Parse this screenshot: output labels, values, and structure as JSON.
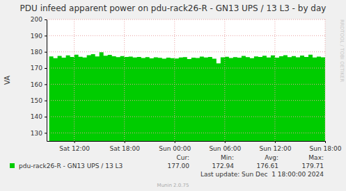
{
  "chart_data": {
    "type": "area",
    "title": "PDU infeed apparent power on pdu-rack26-R - GN13 UPS / 13 L3 - by day",
    "y_label": "VA",
    "x": [
      9,
      9.5,
      10,
      10.5,
      11,
      11.5,
      12,
      12.5,
      13,
      13.5,
      14,
      14.5,
      15,
      15.5,
      16,
      16.5,
      17,
      17.5,
      18,
      18.5,
      19,
      19.5,
      20,
      20.5,
      21,
      21.5,
      22,
      22.5,
      23,
      23.5,
      24,
      24.5,
      25,
      25.5,
      26,
      26.5,
      27,
      27.5,
      28,
      28.5,
      29,
      29.5,
      30,
      30.5,
      31,
      31.5,
      32,
      32.5,
      33,
      33.5,
      34,
      34.5,
      35,
      35.5,
      36,
      36.5,
      37,
      37.5,
      38,
      38.5,
      39,
      39.5,
      40,
      40.5,
      41,
      41.5,
      42
    ],
    "series": [
      {
        "name": "pdu-rack26-R - GN13 UPS / 13 L3",
        "color": "#00cc00",
        "values": [
          177.2,
          176.1,
          177.5,
          176.4,
          177.8,
          176.9,
          178.3,
          177.0,
          176.5,
          177.9,
          178.6,
          177.2,
          179.7,
          177.6,
          178.1,
          177.3,
          176.8,
          177.4,
          176.9,
          177.1,
          176.5,
          176.9,
          176.2,
          176.7,
          176.0,
          176.6,
          176.3,
          175.8,
          176.4,
          176.1,
          175.9,
          176.5,
          176.8,
          175.6,
          176.4,
          176.2,
          177.1,
          176.5,
          176.9,
          175.8,
          172.9,
          176.6,
          177.0,
          176.2,
          176.8,
          176.4,
          177.5,
          176.7,
          176.1,
          177.2,
          176.9,
          177.6,
          176.5,
          177.8,
          176.4,
          177.3,
          177.9,
          176.8,
          177.4,
          176.6,
          177.7,
          176.9,
          178.2,
          176.5,
          177.1,
          176.6,
          177.0
        ]
      }
    ],
    "xlim": [
      8.7,
      42
    ],
    "xticks": [
      {
        "value": 12,
        "label": "Sat 12:00"
      },
      {
        "value": 18,
        "label": "Sat 18:00"
      },
      {
        "value": 24,
        "label": "Sun 00:00"
      },
      {
        "value": 30,
        "label": "Sun 06:00"
      },
      {
        "value": 36,
        "label": "Sun 12:00"
      },
      {
        "value": 42,
        "label": "Sun 18:00"
      }
    ],
    "ylim": [
      125,
      200
    ],
    "yticks": [
      130,
      140,
      150,
      160,
      170,
      180,
      190,
      200
    ],
    "grid": true,
    "stats": [
      {
        "name": "Cur:",
        "value": "177.00"
      },
      {
        "name": "Min:",
        "value": "172.94"
      },
      {
        "name": "Avg:",
        "value": "176.61"
      },
      {
        "name": "Max:",
        "value": "179.71"
      }
    ],
    "last_update": "Last update: Sun Dec  1 18:00:00 2024",
    "footer": "Munin 2.0.75",
    "watermark": "RRDTOOL / TOBI OETIKER"
  }
}
